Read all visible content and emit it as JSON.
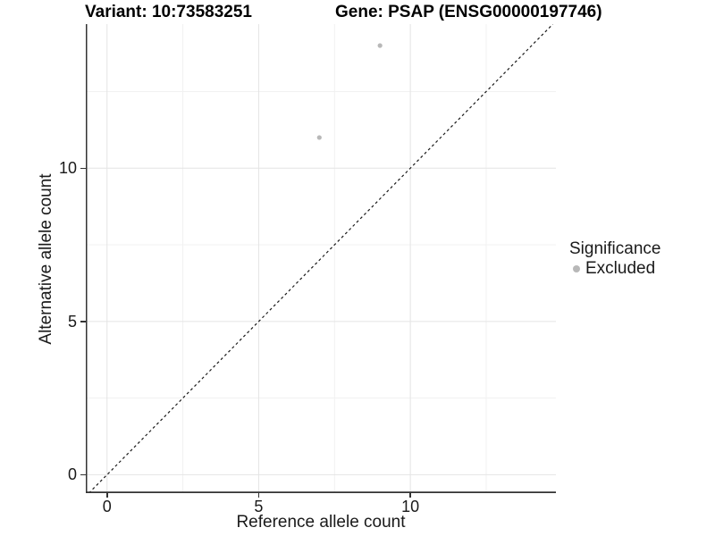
{
  "figure": {
    "background": "#ffffff"
  },
  "chart_data": {
    "type": "scatter",
    "title_left": "Variant: 10:73583251",
    "title_right": "Gene: PSAP (ENSG00000197746)",
    "xlabel": "Reference allele count",
    "ylabel": "Alternative allele count",
    "xlim": [
      -0.7,
      14.8
    ],
    "ylim": [
      -0.6,
      14.7
    ],
    "x_major_ticks": [
      0,
      5,
      10
    ],
    "x_minor_ticks": [
      2.5,
      7.5,
      12.5
    ],
    "y_major_ticks": [
      0,
      5,
      10
    ],
    "y_minor_ticks": [
      2.5,
      7.5,
      12.5
    ],
    "grid": "major+minor",
    "points": [
      {
        "x": 9,
        "y": 14,
        "series": "Excluded"
      },
      {
        "x": 7,
        "y": 11,
        "series": "Excluded"
      }
    ],
    "identity_line": {
      "style": "dashed",
      "slope": 1,
      "intercept": 0,
      "color": "#1a1a1a"
    },
    "colors": {
      "point": "#b8b8b8",
      "grid_major": "#e4e4e4",
      "grid_minor": "#f1f1f1",
      "axis": "#333333",
      "text": "#1a1a1a"
    },
    "legend": {
      "title": "Significance",
      "position": "right",
      "items": [
        {
          "label": "Excluded",
          "color": "#b8b8b8"
        }
      ]
    }
  }
}
